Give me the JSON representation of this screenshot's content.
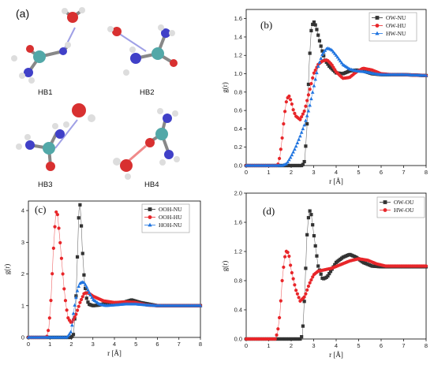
{
  "figure": {
    "molecule_panel": {
      "label": "(a)",
      "structures": [
        {
          "name": "HB1"
        },
        {
          "name": "HB2"
        },
        {
          "name": "HB3"
        },
        {
          "name": "HB4"
        }
      ]
    },
    "colors": {
      "black": "#333333",
      "red": "#e8262a",
      "blue": "#1f74e0"
    }
  },
  "chart_data": [
    {
      "panel": "(b)",
      "type": "scatter",
      "xlabel": "r [Å]",
      "ylabel": "g(r)",
      "xlim": [
        0,
        8
      ],
      "ylim": [
        0,
        1.7
      ],
      "xticks": [
        "0",
        "1",
        "2",
        "3",
        "4",
        "5",
        "6",
        "7",
        "8"
      ],
      "yticks": [
        "0.0",
        "0.2",
        "0.4",
        "0.6",
        "0.8",
        "1.0",
        "1.2",
        "1.4",
        "1.6"
      ],
      "legend_position": "top-right",
      "series": [
        {
          "name": "OW-NU",
          "marker": "square",
          "color": "#333333",
          "x": [
            0,
            2.5,
            2.6,
            2.7,
            2.8,
            2.9,
            3.0,
            3.1,
            3.3,
            3.5,
            3.7,
            4.0,
            4.3,
            4.6,
            4.9,
            5.2,
            5.6,
            6.0,
            7.0,
            8.0
          ],
          "y": [
            0,
            0,
            0.05,
            0.4,
            1.1,
            1.5,
            1.57,
            1.52,
            1.32,
            1.15,
            1.08,
            1.01,
            1.0,
            1.03,
            1.04,
            1.03,
            1.0,
            0.99,
            0.99,
            0.98
          ]
        },
        {
          "name": "OW-HU",
          "marker": "circle",
          "color": "#e8262a",
          "x": [
            0,
            1.4,
            1.5,
            1.6,
            1.7,
            1.8,
            1.9,
            2.0,
            2.1,
            2.2,
            2.4,
            2.6,
            2.8,
            3.0,
            3.2,
            3.4,
            3.6,
            3.8,
            4.0,
            4.3,
            4.6,
            4.9,
            5.2,
            5.6,
            6.0,
            6.5,
            7.0,
            8.0
          ],
          "y": [
            0,
            0,
            0.1,
            0.3,
            0.55,
            0.72,
            0.76,
            0.7,
            0.6,
            0.54,
            0.5,
            0.6,
            0.8,
            1.0,
            1.1,
            1.14,
            1.15,
            1.1,
            1.02,
            0.95,
            0.96,
            1.02,
            1.06,
            1.04,
            1.0,
            0.99,
            0.99,
            0.98
          ]
        },
        {
          "name": "HW-NU",
          "marker": "triangle",
          "color": "#1f74e0",
          "x": [
            0,
            1.6,
            1.8,
            2.0,
            2.2,
            2.4,
            2.6,
            2.8,
            3.0,
            3.2,
            3.4,
            3.6,
            3.8,
            4.0,
            4.3,
            4.6,
            4.9,
            5.3,
            5.7,
            6.0,
            7.0,
            8.0
          ],
          "y": [
            0,
            0,
            0.02,
            0.1,
            0.2,
            0.32,
            0.45,
            0.62,
            0.85,
            1.08,
            1.22,
            1.28,
            1.26,
            1.2,
            1.1,
            1.05,
            1.03,
            1.02,
            1.0,
            0.99,
            0.99,
            0.98
          ]
        }
      ]
    },
    {
      "panel": "(c)",
      "type": "scatter",
      "xlabel": "r [Å]",
      "ylabel": "g(r)",
      "xlim": [
        0,
        8
      ],
      "ylim": [
        0,
        4.3
      ],
      "xticks": [
        "0",
        "1",
        "2",
        "3",
        "4",
        "5",
        "6",
        "7",
        "8"
      ],
      "yticks": [
        "0",
        "1",
        "2",
        "3",
        "4"
      ],
      "legend_position": "top-right",
      "series": [
        {
          "name": "OOH-NU",
          "marker": "square",
          "color": "#333333",
          "x": [
            0,
            2.0,
            2.1,
            2.2,
            2.3,
            2.35,
            2.4,
            2.45,
            2.5,
            2.6,
            2.7,
            2.8,
            3.0,
            3.3,
            3.6,
            4.0,
            4.4,
            4.8,
            5.2,
            5.6,
            6.0,
            7.0,
            8.0
          ],
          "y": [
            0,
            0,
            0.1,
            1.0,
            3.0,
            4.0,
            4.18,
            3.7,
            2.9,
            1.8,
            1.25,
            1.05,
            1.0,
            1.02,
            1.08,
            1.08,
            1.1,
            1.18,
            1.1,
            1.05,
            1.0,
            1.0,
            1.0
          ]
        },
        {
          "name": "OOH-HU",
          "marker": "circle",
          "color": "#e8262a",
          "x": [
            0,
            0.85,
            0.95,
            1.05,
            1.15,
            1.25,
            1.3,
            1.35,
            1.45,
            1.55,
            1.65,
            1.75,
            1.85,
            2.0,
            2.2,
            2.4,
            2.6,
            2.8,
            3.0,
            3.5,
            4.0,
            4.5,
            5.0,
            5.5,
            6.0,
            7.0,
            8.0
          ],
          "y": [
            0,
            0,
            0.3,
            1.2,
            2.6,
            3.7,
            4.0,
            3.9,
            3.2,
            2.4,
            1.6,
            1.0,
            0.6,
            0.45,
            0.7,
            1.1,
            1.4,
            1.4,
            1.3,
            1.15,
            1.1,
            1.12,
            1.1,
            1.02,
            1.0,
            1.0,
            1.0
          ]
        },
        {
          "name": "HOH-NU",
          "marker": "triangle",
          "color": "#1f74e0",
          "x": [
            0,
            1.8,
            2.0,
            2.1,
            2.2,
            2.3,
            2.4,
            2.5,
            2.6,
            2.7,
            2.8,
            3.0,
            3.3,
            3.6,
            4.0,
            4.5,
            5.0,
            5.5,
            6.0,
            7.0,
            8.0
          ],
          "y": [
            0,
            0,
            0.2,
            0.8,
            1.2,
            1.55,
            1.7,
            1.75,
            1.72,
            1.6,
            1.45,
            1.2,
            1.05,
            1.0,
            1.02,
            1.05,
            1.05,
            1.02,
            1.0,
            1.0,
            1.0
          ]
        }
      ]
    },
    {
      "panel": "(d)",
      "type": "scatter",
      "xlabel": "r [Å]",
      "ylabel": "g(r)",
      "xlim": [
        0,
        8
      ],
      "ylim": [
        0,
        2.0
      ],
      "xticks": [
        "0",
        "1",
        "2",
        "3",
        "4",
        "5",
        "6",
        "7",
        "8"
      ],
      "yticks": [
        "0.0",
        "0.4",
        "0.8",
        "1.2",
        "1.6",
        "2.0"
      ],
      "legend_position": "top-right",
      "series": [
        {
          "name": "OW-OU",
          "marker": "square",
          "color": "#333333",
          "x": [
            0,
            2.4,
            2.5,
            2.6,
            2.7,
            2.8,
            2.9,
            3.0,
            3.2,
            3.4,
            3.6,
            3.8,
            4.0,
            4.3,
            4.6,
            4.9,
            5.2,
            5.6,
            6.0,
            7.0,
            8.0
          ],
          "y": [
            0,
            0,
            0.05,
            0.6,
            1.4,
            1.78,
            1.7,
            1.45,
            1.0,
            0.82,
            0.85,
            0.95,
            1.05,
            1.12,
            1.16,
            1.12,
            1.05,
            1.0,
            0.99,
            0.99,
            0.99
          ]
        },
        {
          "name": "HW-OU",
          "marker": "circle",
          "color": "#e8262a",
          "x": [
            0,
            1.3,
            1.4,
            1.5,
            1.6,
            1.7,
            1.8,
            1.9,
            2.0,
            2.2,
            2.4,
            2.6,
            2.8,
            3.0,
            3.2,
            3.5,
            3.8,
            4.2,
            4.6,
            5.0,
            5.4,
            5.8,
            6.2,
            7.0,
            8.0
          ],
          "y": [
            0,
            0,
            0.1,
            0.35,
            0.8,
            1.1,
            1.22,
            1.15,
            0.95,
            0.68,
            0.52,
            0.58,
            0.75,
            0.88,
            0.93,
            0.95,
            0.97,
            1.02,
            1.07,
            1.1,
            1.08,
            1.03,
            1.0,
            1.0,
            1.0
          ]
        }
      ]
    }
  ]
}
